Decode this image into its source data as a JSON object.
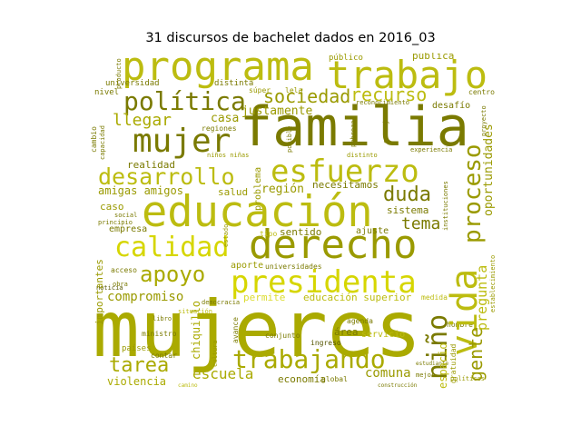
{
  "title": "31 discursos de bachelet dados en 2016_03",
  "words": {
    "mujeres": "mujeres",
    "familia": "familia",
    "educacion": "educación",
    "derecho": "derecho",
    "programa": "programa",
    "trabajo": "trabajo",
    "vida": "vida",
    "presidenta": "presidenta",
    "mujer": "mujer",
    "esfuerzo": "esfuerzo",
    "calidad": "calidad",
    "desarrollo": "desarrollo",
    "politica": "política",
    "trabajando": "trabajando",
    "sociedad": "sociedad",
    "recurso": "recurso",
    "apoyo": "apoyo",
    "duda": "duda",
    "nino": "niño",
    "proceso": "proceso",
    "gente": "gente",
    "tarea": "tarea",
    "llegar": "llegar",
    "tema": "tema",
    "compromiso": "compromiso",
    "pregunta": "pregunta",
    "oportunidades": "oportunidades",
    "espacio": "espacio",
    "escuela": "escuela",
    "violencia": "violencia",
    "comuna": "comuna",
    "economia": "economía",
    "justamente": "justamente",
    "casa": "casa",
    "realidad": "realidad",
    "amigas_amigos": "amigas amigos",
    "region": "región",
    "necesitamos": "necesitamos",
    "sistema": "sistema",
    "sentido": "sentido",
    "ajuste": "ajuste",
    "caso": "caso",
    "salud": "salud",
    "empresa": "empresa",
    "aporte": "aporte",
    "permite": "permite",
    "educacion_superior": "educación superior",
    "universidad": "universidad",
    "distinta": "distinta",
    "publico": "público",
    "publica": "pública",
    "desafio": "desafío",
    "area": "área",
    "servicio": "servicio",
    "importantes": "importantes",
    "chiquillo": "chiquillo",
    "problema": "problema",
    "acceso": "acceso",
    "social": "social",
    "nivel": "nivel",
    "cambio": "cambio",
    "capacidad": "capacidad",
    "producto": "producto",
    "centro": "centro",
    "hombre": "hombre",
    "global": "global",
    "ingreso": "ingreso",
    "conjunto": "conjunto",
    "paises": "países",
    "contar": "contar",
    "avance": "avance",
    "ministro": "ministro",
    "regiones": "regiones",
    "universidades": "universidades",
    "medida": "medida",
    "agenda": "agenda",
    "estudiante": "estudiante",
    "construccion": "construcción",
    "establecimiento": "establecimiento",
    "gratuidad": "gratuidad",
    "experiencia": "experiencia",
    "reconocimiento": "reconocimiento",
    "instituciones": "instituciones",
    "distinto": "distinto",
    "noticia": "noticia",
    "principio": "principio",
    "ninos_ninas": "niños niñas",
    "libro": "libro",
    "tipo": "tipo",
    "democracia": "democracia",
    "cultura": "cultura",
    "consejo": "consejo",
    "situacion": "situación",
    "super": "súper",
    "lela": "lela",
    "obra": "obra",
    "pobreza": "pobreza",
    "estado": "estado",
    "camino": "camino",
    "posible": "posible",
    "proyecto": "proyecto",
    "politicas": "políticas",
    "mejor": "mejor"
  },
  "colors": {
    "olive_dark": "#7a7a00",
    "olive": "#9a9a00",
    "olive_mid": "#aaaa00",
    "yellow_green": "#bcbc10",
    "bright_yellow": "#d6d600",
    "pale_yellow": "#dcdc30",
    "dark_text": "#555500"
  }
}
